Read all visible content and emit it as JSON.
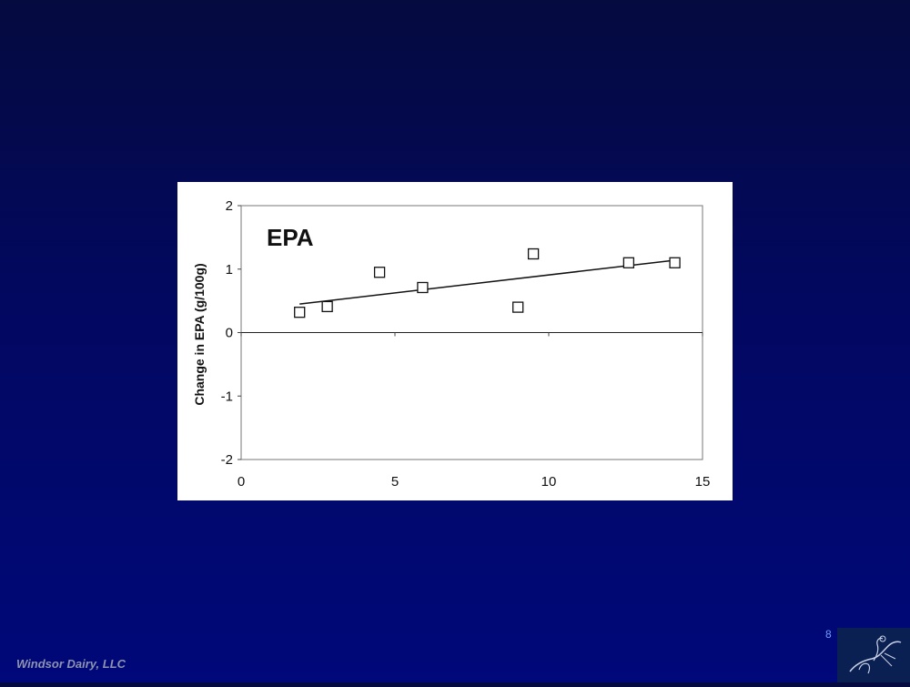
{
  "slide": {
    "number": "8",
    "footer": "Windsor Dairy, LLC",
    "background_top": "#050a3f",
    "background_bottom": "#00087a",
    "slide_number_color": "#6f9cff",
    "logo_icon": "horse-rider-logo-icon"
  },
  "chart_data": {
    "type": "scatter",
    "title": "EPA",
    "xlabel": "",
    "ylabel": "Change in EPA (g/100g)",
    "xlim": [
      0,
      15
    ],
    "ylim": [
      -2,
      2
    ],
    "x_ticks": [
      0,
      5,
      10,
      15
    ],
    "y_ticks": [
      2,
      1,
      0,
      -1,
      -2
    ],
    "grid": false,
    "legend": "none",
    "marker": "open-square",
    "points": [
      {
        "x": 1.9,
        "y": 0.32
      },
      {
        "x": 2.8,
        "y": 0.41
      },
      {
        "x": 4.5,
        "y": 0.95
      },
      {
        "x": 5.9,
        "y": 0.71
      },
      {
        "x": 9.0,
        "y": 0.4
      },
      {
        "x": 9.5,
        "y": 1.24
      },
      {
        "x": 12.6,
        "y": 1.1
      },
      {
        "x": 14.1,
        "y": 1.1
      }
    ],
    "trendline": {
      "x": [
        1.9,
        14.1
      ],
      "y": [
        0.45,
        1.14
      ]
    }
  }
}
